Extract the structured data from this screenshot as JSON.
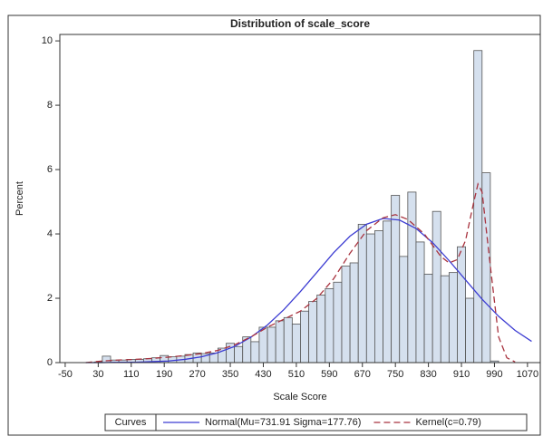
{
  "chart_data": {
    "type": "histogram",
    "title": "Distribution of scale_score",
    "x_label": "Scale Score",
    "y_label": "Percent",
    "bins": [
      20,
      40,
      60,
      80,
      100,
      120,
      140,
      160,
      180,
      200,
      220,
      240,
      260,
      280,
      300,
      320,
      340,
      360,
      380,
      400,
      420,
      440,
      460,
      480,
      500,
      520,
      540,
      560,
      580,
      600,
      620,
      640,
      660,
      680,
      700,
      720,
      740,
      760,
      780,
      800,
      820,
      840,
      860,
      880,
      900,
      920,
      940,
      960,
      980,
      1000
    ],
    "values": [
      0.02,
      0.2,
      0.08,
      0.08,
      0.1,
      0.1,
      0.12,
      0.15,
      0.22,
      0.18,
      0.2,
      0.25,
      0.3,
      0.28,
      0.3,
      0.45,
      0.6,
      0.5,
      0.8,
      0.65,
      1.1,
      1.1,
      1.3,
      1.4,
      1.2,
      1.6,
      1.9,
      2.1,
      2.3,
      2.5,
      3.0,
      3.1,
      4.3,
      4.0,
      4.1,
      4.4,
      5.2,
      3.3,
      5.3,
      3.75,
      2.75,
      4.7,
      2.7,
      2.8,
      3.6,
      2.0,
      9.7,
      5.9,
      0.05
    ],
    "color": "#d5e0ee",
    "xlim": [
      -63,
      1101
    ],
    "ylim": [
      0,
      10.2
    ],
    "xticks": [
      -50,
      30,
      110,
      190,
      270,
      350,
      430,
      510,
      590,
      670,
      750,
      830,
      910,
      990,
      1070
    ],
    "yticks": [
      0,
      2,
      4,
      6,
      8,
      10
    ],
    "legend_title": "Curves",
    "series": [
      {
        "name": "Normal(Mu=731.91 Sigma=177.76)",
        "color": "#3c3cd2",
        "dash": false,
        "x": [
          0,
          40,
          80,
          120,
          160,
          200,
          240,
          280,
          320,
          360,
          400,
          440,
          480,
          520,
          560,
          600,
          640,
          680,
          720,
          760,
          800,
          840,
          880,
          920,
          960,
          1000,
          1040,
          1080
        ],
        "values": [
          0,
          0,
          0.01,
          0.01,
          0.03,
          0.05,
          0.1,
          0.18,
          0.31,
          0.5,
          0.79,
          1.17,
          1.65,
          2.21,
          2.81,
          3.41,
          3.93,
          4.3,
          4.48,
          4.43,
          4.17,
          3.73,
          3.17,
          2.57,
          1.97,
          1.44,
          1.0,
          0.66
        ]
      },
      {
        "name": "Kernel(c=0.79)",
        "color": "#a8323e",
        "dash": true,
        "x": [
          0,
          40,
          80,
          120,
          160,
          200,
          240,
          280,
          320,
          360,
          400,
          440,
          480,
          520,
          560,
          600,
          640,
          680,
          720,
          750,
          780,
          820,
          860,
          880,
          900,
          920,
          940,
          950,
          960,
          980,
          1000,
          1020,
          1040
        ],
        "values": [
          0,
          0.05,
          0.08,
          0.1,
          0.13,
          0.17,
          0.22,
          0.28,
          0.38,
          0.55,
          0.8,
          1.1,
          1.35,
          1.6,
          2.0,
          2.6,
          3.4,
          4.1,
          4.5,
          4.6,
          4.45,
          4.0,
          3.3,
          3.1,
          3.2,
          3.8,
          5.0,
          5.55,
          5.3,
          3.0,
          0.8,
          0.15,
          0.02
        ]
      }
    ]
  }
}
